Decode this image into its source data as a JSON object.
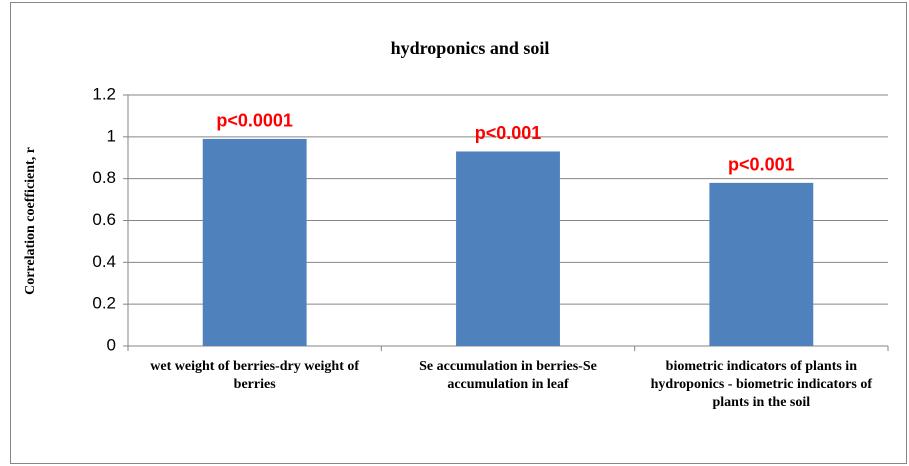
{
  "chart_data": {
    "type": "bar",
    "title": "hydroponics and soil",
    "ylabel": "Correlation  coefficient, r",
    "categories": [
      "wet weight of berries-dry weight of berries",
      "Se accumulation in berries-Se accumulation in leaf",
      "biometric indicators of plants in hydroponics - biometric indicators of plants in the soil"
    ],
    "values": [
      0.99,
      0.93,
      0.78
    ],
    "annotations": [
      "p<0.0001",
      "p<0.001",
      "p<0.001"
    ],
    "color": "#4f81bd",
    "annotation_color": "#ff0000",
    "ylim": [
      0,
      1.2
    ],
    "yticks": [
      0,
      0.2,
      0.4,
      0.6,
      0.8,
      1,
      1.2
    ],
    "grid": true
  }
}
